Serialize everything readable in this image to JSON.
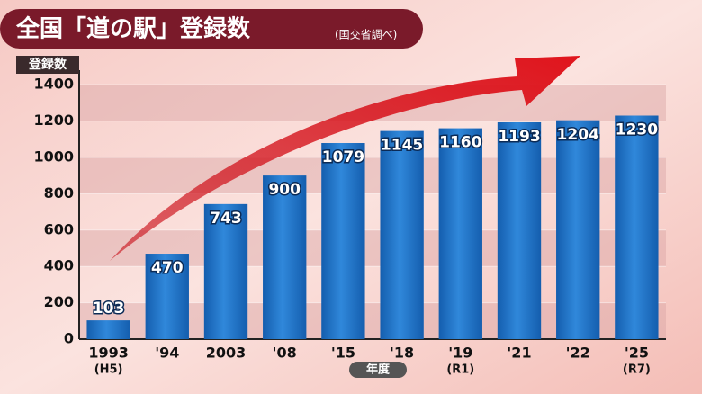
{
  "chart_data": {
    "type": "bar",
    "title": "全国「道の駅」登録数",
    "subtitle": "(国交省調べ)",
    "y_label": "登録数",
    "x_label": "年度",
    "categories": [
      "1993",
      "'94",
      "2003",
      "'08",
      "'15",
      "'18",
      "'19",
      "'21",
      "'22",
      "'25"
    ],
    "category_sublabels": [
      "(H5)",
      null,
      null,
      null,
      null,
      null,
      "(R1)",
      null,
      null,
      "(R7)"
    ],
    "values": [
      103,
      470,
      743,
      900,
      1079,
      1145,
      1160,
      1193,
      1204,
      1230
    ],
    "color": "#1f74c9",
    "ylim": [
      0,
      1480
    ],
    "yticks": [
      0,
      200,
      400,
      600,
      800,
      1000,
      1200,
      1400
    ],
    "grid": true
  }
}
